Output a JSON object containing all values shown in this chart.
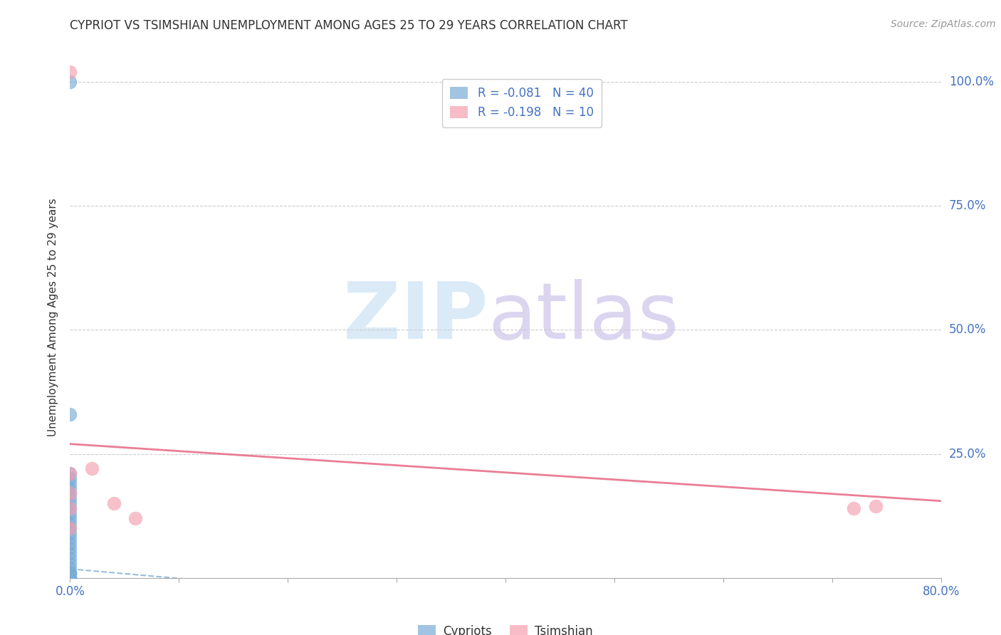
{
  "title": "CYPRIOT VS TSIMSHIAN UNEMPLOYMENT AMONG AGES 25 TO 29 YEARS CORRELATION CHART",
  "source": "Source: ZipAtlas.com",
  "ylabel_label": "Unemployment Among Ages 25 to 29 years",
  "xlim": [
    0.0,
    0.8
  ],
  "ylim": [
    0.0,
    1.05
  ],
  "x_tick_positions": [
    0.0,
    0.1,
    0.2,
    0.3,
    0.4,
    0.5,
    0.6,
    0.7,
    0.8
  ],
  "x_tick_labels": [
    "0.0%",
    "",
    "",
    "",
    "",
    "",
    "",
    "",
    "80.0%"
  ],
  "y_tick_positions": [
    0.0,
    0.25,
    0.5,
    0.75,
    1.0
  ],
  "right_y_tick_labels": [
    "",
    "25.0%",
    "50.0%",
    "75.0%",
    "100.0%"
  ],
  "grid_color": "#cccccc",
  "background_color": "#ffffff",
  "cypriot_color": "#7aacd6",
  "tsimshian_color": "#f4a0b0",
  "legend_R_label1": "R = -0.081   N = 40",
  "legend_R_label2": "R = -0.198   N = 10",
  "legend_label1": "Cypriots",
  "legend_label2": "Tsimshian",
  "cypriot_x": [
    0.0,
    0.0,
    0.0,
    0.0,
    0.0,
    0.0,
    0.0,
    0.0,
    0.0,
    0.0,
    0.0,
    0.0,
    0.0,
    0.0,
    0.0,
    0.0,
    0.0,
    0.0,
    0.0,
    0.0,
    0.0,
    0.0,
    0.0,
    0.0,
    0.0,
    0.0,
    0.0,
    0.0,
    0.0,
    0.0,
    0.0,
    0.0,
    0.0,
    0.0,
    0.0,
    0.0,
    0.0,
    0.0,
    0.0,
    0.0
  ],
  "cypriot_y": [
    1.0,
    0.33,
    0.21,
    0.2,
    0.19,
    0.18,
    0.17,
    0.16,
    0.15,
    0.14,
    0.13,
    0.12,
    0.11,
    0.1,
    0.09,
    0.08,
    0.07,
    0.06,
    0.05,
    0.04,
    0.03,
    0.02,
    0.01,
    0.01,
    0.01,
    0.01,
    0.01,
    0.0,
    0.0,
    0.0,
    0.0,
    0.0,
    0.0,
    0.0,
    0.0,
    0.0,
    0.0,
    0.0,
    0.0,
    0.0
  ],
  "tsimshian_x": [
    0.0,
    0.02,
    0.04,
    0.06,
    0.72,
    0.74,
    0.0,
    0.0,
    0.0,
    0.0
  ],
  "tsimshian_y": [
    1.02,
    0.22,
    0.15,
    0.12,
    0.14,
    0.145,
    0.21,
    0.17,
    0.14,
    0.1
  ],
  "cyp_trend_x": [
    0.0,
    0.12
  ],
  "cyp_trend_y": [
    0.018,
    -0.005
  ],
  "tsi_trend_x": [
    0.0,
    0.8
  ],
  "tsi_trend_y": [
    0.27,
    0.155
  ],
  "watermark_zip": "ZIP",
  "watermark_atlas": "atlas",
  "watermark_zip_color": "#daeaf7",
  "watermark_atlas_color": "#dcd5f0"
}
